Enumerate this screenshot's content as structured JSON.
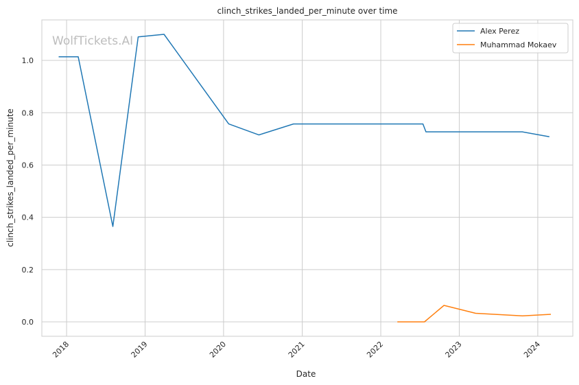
{
  "chart_data": {
    "type": "line",
    "title": "clinch_strikes_landed_per_minute over time",
    "xlabel": "Date",
    "ylabel": "clinch_strikes_landed_per_minute",
    "watermark": "WolfTickets.AI",
    "grid": true,
    "legend_position": "top-right",
    "x_range": [
      "2017-09-08",
      "2024-06-12"
    ],
    "ylim": [
      -0.055,
      1.155
    ],
    "x_ticks": [
      {
        "label": "2018",
        "value": "2018-01-01"
      },
      {
        "label": "2019",
        "value": "2019-01-01"
      },
      {
        "label": "2020",
        "value": "2020-01-01"
      },
      {
        "label": "2021",
        "value": "2021-01-01"
      },
      {
        "label": "2022",
        "value": "2022-01-01"
      },
      {
        "label": "2023",
        "value": "2023-01-01"
      },
      {
        "label": "2024",
        "value": "2024-01-01"
      }
    ],
    "y_ticks": [
      {
        "label": "0.0",
        "value": 0.0
      },
      {
        "label": "0.2",
        "value": 0.2
      },
      {
        "label": "0.4",
        "value": 0.4
      },
      {
        "label": "0.6",
        "value": 0.6
      },
      {
        "label": "0.8",
        "value": 0.8
      },
      {
        "label": "1.0",
        "value": 1.0
      }
    ],
    "series": [
      {
        "name": "Alex Perez",
        "color": "#1f77b4",
        "points": [
          {
            "x": "2017-11-25",
            "y": 1.014
          },
          {
            "x": "2018-02-24",
            "y": 1.014
          },
          {
            "x": "2018-08-04",
            "y": 0.365
          },
          {
            "x": "2018-11-30",
            "y": 1.09
          },
          {
            "x": "2019-03-30",
            "y": 1.1
          },
          {
            "x": "2020-01-25",
            "y": 0.757
          },
          {
            "x": "2020-06-13",
            "y": 0.715
          },
          {
            "x": "2020-11-21",
            "y": 0.757
          },
          {
            "x": "2022-07-16",
            "y": 0.757
          },
          {
            "x": "2022-07-30",
            "y": 0.727
          },
          {
            "x": "2023-10-21",
            "y": 0.727
          },
          {
            "x": "2024-02-24",
            "y": 0.708
          }
        ]
      },
      {
        "name": "Muhammad Mokaev",
        "color": "#ff7f0e",
        "points": [
          {
            "x": "2022-03-19",
            "y": 0.0
          },
          {
            "x": "2022-07-23",
            "y": 0.0
          },
          {
            "x": "2022-10-22",
            "y": 0.063
          },
          {
            "x": "2023-03-18",
            "y": 0.033
          },
          {
            "x": "2023-10-21",
            "y": 0.023
          },
          {
            "x": "2024-03-02",
            "y": 0.029
          }
        ]
      }
    ]
  }
}
